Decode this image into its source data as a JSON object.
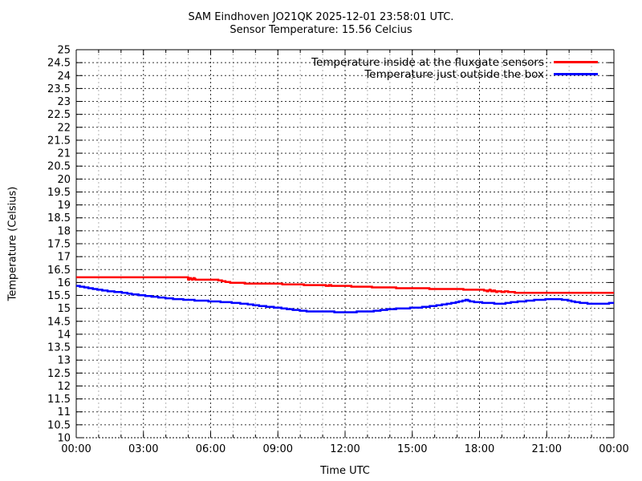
{
  "title": {
    "line1": "SAM Eindhoven JO21QK 2025-12-01 23:58:01 UTC.",
    "line2": "Sensor Temperature: 15.56 Celcius"
  },
  "chart_data": {
    "type": "line",
    "title": "SAM Eindhoven JO21QK 2025-12-01 23:58:01 UTC.",
    "subtitle": "Sensor Temperature: 15.56 Celcius",
    "xlabel": "Time UTC",
    "ylabel": "Temperature (Celsius)",
    "xlim_hours": [
      0,
      24
    ],
    "ylim": [
      10,
      25
    ],
    "y_tick_step": 0.5,
    "x_major_tick_hours": [
      0,
      3,
      6,
      9,
      12,
      15,
      18,
      21,
      24
    ],
    "x_tick_labels": [
      "00:00",
      "03:00",
      "06:00",
      "09:00",
      "12:00",
      "15:00",
      "18:00",
      "21:00",
      "00:00"
    ],
    "x_minor_tick_every_hours": 1,
    "grid": {
      "on": true,
      "style": "dotted",
      "horizontal_every": 0.5,
      "vertical_minor_every_hours": 1,
      "vertical_major_every_hours": 3
    },
    "legend_position": "top-right-inside",
    "colors": {
      "background": "#ffffff",
      "border": "#000000",
      "grid_major": "#333333",
      "grid_minor": "#b3b3b3",
      "text": "#000000",
      "series_inside": "#ff0000",
      "series_outside": "#0000ff"
    },
    "series": [
      {
        "label": "Temperature inside at the fluxgate sensors",
        "color": "#ff0000",
        "points_hour_celsius": [
          [
            0,
            16.2
          ],
          [
            4.95,
            16.2
          ],
          [
            5.0,
            16.12
          ],
          [
            5.08,
            16.18
          ],
          [
            5.16,
            16.1
          ],
          [
            5.24,
            16.16
          ],
          [
            5.32,
            16.1
          ],
          [
            5.45,
            16.12
          ],
          [
            5.55,
            16.1
          ],
          [
            6.3,
            16.1
          ],
          [
            6.5,
            16.06
          ],
          [
            6.75,
            16.02
          ],
          [
            7.0,
            15.98
          ],
          [
            8.0,
            15.97
          ],
          [
            9.0,
            15.96
          ],
          [
            9.35,
            15.93
          ],
          [
            10.0,
            15.92
          ],
          [
            10.6,
            15.9
          ],
          [
            11.1,
            15.9
          ],
          [
            11.2,
            15.86
          ],
          [
            11.3,
            15.9
          ],
          [
            11.45,
            15.87
          ],
          [
            11.6,
            15.87
          ],
          [
            12.0,
            15.86
          ],
          [
            12.5,
            15.85
          ],
          [
            13.0,
            15.83
          ],
          [
            14.0,
            15.8
          ],
          [
            15.0,
            15.78
          ],
          [
            16.0,
            15.76
          ],
          [
            17.0,
            15.74
          ],
          [
            18.0,
            15.72
          ],
          [
            18.25,
            15.7
          ],
          [
            18.35,
            15.66
          ],
          [
            18.45,
            15.71
          ],
          [
            18.55,
            15.65
          ],
          [
            18.65,
            15.69
          ],
          [
            18.75,
            15.64
          ],
          [
            18.9,
            15.67
          ],
          [
            19.0,
            15.63
          ],
          [
            19.2,
            15.66
          ],
          [
            19.35,
            15.62
          ],
          [
            19.5,
            15.63
          ],
          [
            19.6,
            15.6
          ],
          [
            24,
            15.6
          ]
        ]
      },
      {
        "label": "Temperature just outside the box",
        "color": "#0000ff",
        "points_hour_celsius": [
          [
            0,
            15.88
          ],
          [
            0.5,
            15.8
          ],
          [
            1,
            15.72
          ],
          [
            1.5,
            15.66
          ],
          [
            2,
            15.62
          ],
          [
            2.5,
            15.55
          ],
          [
            3,
            15.5
          ],
          [
            3.5,
            15.45
          ],
          [
            4,
            15.4
          ],
          [
            4.5,
            15.36
          ],
          [
            5,
            15.33
          ],
          [
            5.5,
            15.3
          ],
          [
            6,
            15.28
          ],
          [
            6.5,
            15.25
          ],
          [
            7,
            15.22
          ],
          [
            7.5,
            15.18
          ],
          [
            8,
            15.12
          ],
          [
            8.5,
            15.07
          ],
          [
            9,
            15.03
          ],
          [
            9.5,
            14.97
          ],
          [
            10,
            14.92
          ],
          [
            10.4,
            14.88
          ],
          [
            11,
            14.87
          ],
          [
            12,
            14.86
          ],
          [
            13,
            14.87
          ],
          [
            13.3,
            14.9
          ],
          [
            13.6,
            14.93
          ],
          [
            14,
            14.97
          ],
          [
            14.5,
            15.0
          ],
          [
            15,
            15.02
          ],
          [
            15.5,
            15.05
          ],
          [
            16,
            15.1
          ],
          [
            16.5,
            15.16
          ],
          [
            17,
            15.24
          ],
          [
            17.3,
            15.3
          ],
          [
            17.45,
            15.33
          ],
          [
            17.6,
            15.27
          ],
          [
            18,
            15.23
          ],
          [
            18.5,
            15.2
          ],
          [
            19,
            15.18
          ],
          [
            19.5,
            15.24
          ],
          [
            20,
            15.28
          ],
          [
            20.5,
            15.32
          ],
          [
            21,
            15.35
          ],
          [
            21.6,
            15.35
          ],
          [
            21.9,
            15.32
          ],
          [
            22.1,
            15.28
          ],
          [
            22.4,
            15.23
          ],
          [
            22.7,
            15.2
          ],
          [
            23.2,
            15.17
          ],
          [
            23.5,
            15.19
          ],
          [
            24,
            15.2
          ]
        ]
      }
    ]
  }
}
